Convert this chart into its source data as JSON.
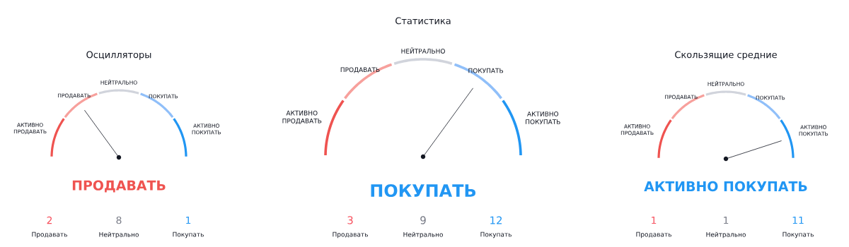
{
  "chart_data": [
    {
      "type": "donut",
      "title": "Осцилляторы",
      "categories": [
        "АКТИВНО ПРОДАВАТЬ",
        "ПРОДАВАТЬ",
        "НЕЙТРАЛЬНО",
        "ПОКУПАТЬ",
        "АКТИВНО ПОКУПАТЬ"
      ],
      "values": [
        20,
        20,
        20,
        20,
        20
      ],
      "colors": [
        "#ef5350",
        "#f7a09c",
        "#d1d4dc",
        "#90bff9",
        "#2196f3"
      ],
      "needle": "ПРОДАВАТЬ"
    },
    {
      "type": "donut",
      "title": "Статистика",
      "categories": [
        "АКТИВНО ПРОДАВАТЬ",
        "ПРОДАВАТЬ",
        "НЕЙТРАЛЬНО",
        "ПОКУПАТЬ",
        "АКТИВНО ПОКУПАТЬ"
      ],
      "values": [
        20,
        20,
        20,
        20,
        20
      ],
      "colors": [
        "#ef5350",
        "#f7a09c",
        "#d1d4dc",
        "#90bff9",
        "#2196f3"
      ],
      "needle": "ПОКУПАТЬ"
    },
    {
      "type": "donut",
      "title": "Скользящие средние",
      "categories": [
        "АКТИВНО ПРОДАВАТЬ",
        "ПРОДАВАТЬ",
        "НЕЙТРАЛЬНО",
        "ПОКУПАТЬ",
        "АКТИВНО ПОКУПАТЬ"
      ],
      "values": [
        20,
        20,
        20,
        20,
        20
      ],
      "colors": [
        "#ef5350",
        "#f7a09c",
        "#d1d4dc",
        "#90bff9",
        "#2196f3"
      ],
      "needle": "АКТИВНО ПОКУПАТЬ"
    },
    {
      "type": "other",
      "categories": [
        "Продавать",
        "Нейтрально",
        "Покупать"
      ],
      "values": [
        2,
        8,
        1
      ],
      "colors": [
        "#f7525f",
        "#787b86",
        "#2196f3"
      ],
      "data_labels": true
    },
    {
      "type": "other",
      "categories": [
        "Продавать",
        "Нейтрально",
        "Покупать"
      ],
      "values": [
        3,
        9,
        12
      ],
      "colors": [
        "#f7525f",
        "#787b86",
        "#2196f3"
      ],
      "data_labels": true
    },
    {
      "type": "other",
      "categories": [
        "Продавать",
        "Нейтрально",
        "Покупать"
      ],
      "values": [
        1,
        1,
        11
      ],
      "colors": [
        "#f7525f",
        "#787b86",
        "#2196f3"
      ],
      "data_labels": true
    }
  ]
}
